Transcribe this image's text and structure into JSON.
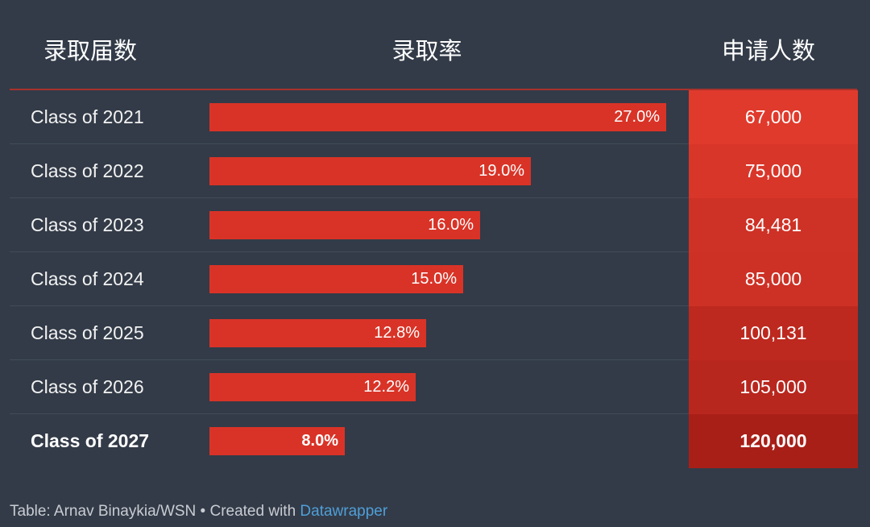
{
  "header": {
    "class_col": "录取届数",
    "rate_col": "录取率",
    "apps_col": "申请人数"
  },
  "chart_data": {
    "type": "table",
    "columns": [
      "录取届数",
      "录取率",
      "申请人数"
    ],
    "rate_max": 27.0,
    "rows": [
      {
        "label": "Class of 2021",
        "rate": 27.0,
        "rate_label": "27.0%",
        "applicants": "67,000",
        "applicants_value": 67000
      },
      {
        "label": "Class of 2022",
        "rate": 19.0,
        "rate_label": "19.0%",
        "applicants": "75,000",
        "applicants_value": 75000
      },
      {
        "label": "Class of 2023",
        "rate": 16.0,
        "rate_label": "16.0%",
        "applicants": "84,481",
        "applicants_value": 84481
      },
      {
        "label": "Class of 2024",
        "rate": 15.0,
        "rate_label": "15.0%",
        "applicants": "85,000",
        "applicants_value": 85000
      },
      {
        "label": "Class of 2025",
        "rate": 12.8,
        "rate_label": "12.8%",
        "applicants": "100,131",
        "applicants_value": 100131
      },
      {
        "label": "Class of 2026",
        "rate": 12.2,
        "rate_label": "12.2%",
        "applicants": "105,000",
        "applicants_value": 105000
      },
      {
        "label": "Class of 2027",
        "rate": 8.0,
        "rate_label": "8.0%",
        "applicants": "120,000",
        "applicants_value": 120000,
        "highlight": true
      }
    ]
  },
  "colors": {
    "background": "#333b48",
    "bar": "#d93327",
    "heat_low": "#e03a2c",
    "heat_high": "#a81f18",
    "link": "#4f9fd8"
  },
  "footer": {
    "source": "Table: Arnav Binaykia/WSN • Created with ",
    "link": "Datawrapper"
  }
}
